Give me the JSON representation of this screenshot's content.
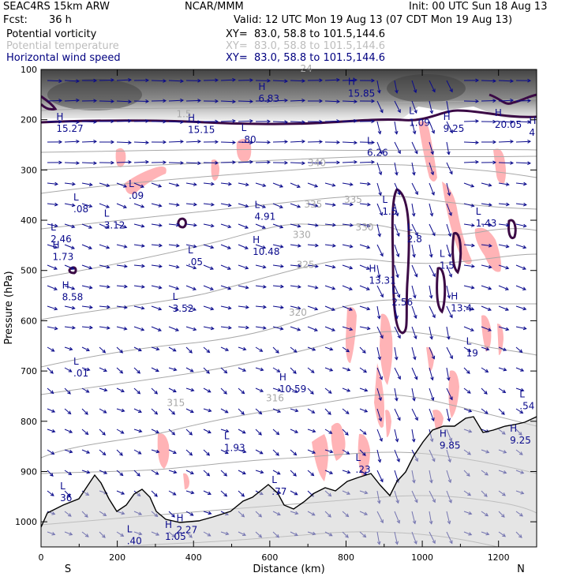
{
  "header": {
    "model": "SEAC4RS 15km ARW",
    "org": "NCAR/MMM",
    "init": "Init: 00 UTC Sun 18 Aug 13",
    "fcst_label": "Fcst:",
    "fcst_value": "36 h",
    "valid": "Valid: 12 UTC Mon 19 Aug 13 (07 CDT Mon 19 Aug 13)"
  },
  "legend": [
    {
      "name": "Potential vorticity",
      "xy": "XY=  83.0, 58.8 to 101.5,144.6",
      "color": "#000000"
    },
    {
      "name": "Potential temperature",
      "xy": "XY=  83.0, 58.8 to 101.5,144.6",
      "color": "#bdbdbd"
    },
    {
      "name": "Horizontal wind speed",
      "xy": "XY=  83.0, 58.8 to 101.5,144.6",
      "color": "#000080"
    }
  ],
  "colors": {
    "pv_contour": "#3b0a45",
    "theta_contour": "#a8a8a8",
    "wind_vectors": "#0a0a8c",
    "positive_shade": "#ffb3b6",
    "terrain": "#000000"
  },
  "chart_data": {
    "type": "cross-section",
    "xlabel": "Distance (km)",
    "ylabel": "Pressure (hPa)",
    "xlim": [
      0,
      1300
    ],
    "ylim_pressure": [
      1050,
      100
    ],
    "x_ticks": [
      "0",
      "200",
      "400",
      "600",
      "800",
      "1000",
      "1200"
    ],
    "y_ticks": [
      "100",
      "200",
      "300",
      "400",
      "500",
      "600",
      "700",
      "800",
      "900",
      "1000"
    ],
    "end_labels": {
      "left": "S",
      "right": "N"
    },
    "theta_labels": [
      {
        "text": "340",
        "x": 700,
        "p": 292
      },
      {
        "text": "335",
        "x": 690,
        "p": 375
      },
      {
        "text": "335",
        "x": 795,
        "p": 365
      },
      {
        "text": "330",
        "x": 660,
        "p": 435
      },
      {
        "text": "330",
        "x": 825,
        "p": 420
      },
      {
        "text": "325",
        "x": 670,
        "p": 495
      },
      {
        "text": "320",
        "x": 650,
        "p": 590
      },
      {
        "text": "315",
        "x": 330,
        "p": 770
      },
      {
        "text": "316",
        "x": 590,
        "p": 760
      },
      {
        "text": "24",
        "x": 680,
        "p": 105
      },
      {
        "text": "1.5",
        "x": 355,
        "p": 195
      }
    ],
    "extrema": [
      {
        "type": "H",
        "value": "15.27",
        "x": 40,
        "p": 210
      },
      {
        "type": "H",
        "value": "15.15",
        "x": 385,
        "p": 212
      },
      {
        "type": "H",
        "value": "6.83",
        "x": 570,
        "p": 150
      },
      {
        "type": "H",
        "value": "15.85",
        "x": 805,
        "p": 140
      },
      {
        "type": "H",
        "value": "9.25",
        "x": 1055,
        "p": 210
      },
      {
        "type": "H",
        "value": "20.05",
        "x": 1190,
        "p": 202
      },
      {
        "type": "H",
        "value": "4",
        "x": 1280,
        "p": 218
      },
      {
        "type": "L",
        "value": ".80",
        "x": 525,
        "p": 232
      },
      {
        "type": "L",
        "value": "6.26",
        "x": 855,
        "p": 258
      },
      {
        "type": "L",
        "value": "1.09",
        "x": 965,
        "p": 198
      },
      {
        "type": "L",
        "value": ".09",
        "x": 230,
        "p": 343
      },
      {
        "type": "L",
        "value": ".08",
        "x": 85,
        "p": 370
      },
      {
        "type": "L",
        "value": "3.12",
        "x": 165,
        "p": 402
      },
      {
        "type": "L",
        "value": "4.91",
        "x": 560,
        "p": 385
      },
      {
        "type": "L",
        "value": "1.5",
        "x": 895,
        "p": 375
      },
      {
        "type": "L",
        "value": "1.43",
        "x": 1140,
        "p": 398
      },
      {
        "type": "L",
        "value": "2.46",
        "x": 25,
        "p": 430
      },
      {
        "type": "L",
        "value": "2.8",
        "x": 960,
        "p": 430
      },
      {
        "type": "H",
        "value": "10.48",
        "x": 555,
        "p": 455
      },
      {
        "type": "H",
        "value": "1.73",
        "x": 30,
        "p": 465
      },
      {
        "type": "L",
        "value": ".05",
        "x": 385,
        "p": 475
      },
      {
        "type": "L",
        "value": "1.5",
        "x": 1045,
        "p": 482
      },
      {
        "type": "H",
        "value": "13.31",
        "x": 860,
        "p": 512
      },
      {
        "type": "H",
        "value": "8.58",
        "x": 55,
        "p": 545
      },
      {
        "type": "L",
        "value": "2.56",
        "x": 920,
        "p": 555
      },
      {
        "type": "H",
        "value": "13.4",
        "x": 1075,
        "p": 567
      },
      {
        "type": "L",
        "value": "3.52",
        "x": 345,
        "p": 568
      },
      {
        "type": "L",
        "value": "19",
        "x": 1115,
        "p": 657
      },
      {
        "type": "L",
        "value": ".01",
        "x": 85,
        "p": 697
      },
      {
        "type": "H",
        "value": "10.59",
        "x": 625,
        "p": 728
      },
      {
        "type": "L",
        "value": ".54",
        "x": 1255,
        "p": 762
      },
      {
        "type": "L",
        "value": "1.93",
        "x": 480,
        "p": 845
      },
      {
        "type": "H",
        "value": "9.85",
        "x": 1045,
        "p": 840
      },
      {
        "type": "H",
        "value": "9.25",
        "x": 1230,
        "p": 830
      },
      {
        "type": "L",
        "value": ".23",
        "x": 825,
        "p": 888
      },
      {
        "type": "L",
        "value": ".77",
        "x": 605,
        "p": 932
      },
      {
        "type": "L",
        "value": "36",
        "x": 50,
        "p": 945
      },
      {
        "type": "H",
        "value": "2.27",
        "x": 355,
        "p": 1008
      },
      {
        "type": "H",
        "value": "1.05",
        "x": 325,
        "p": 1022
      },
      {
        "type": "L",
        "value": ".40",
        "x": 225,
        "p": 1030
      }
    ]
  }
}
